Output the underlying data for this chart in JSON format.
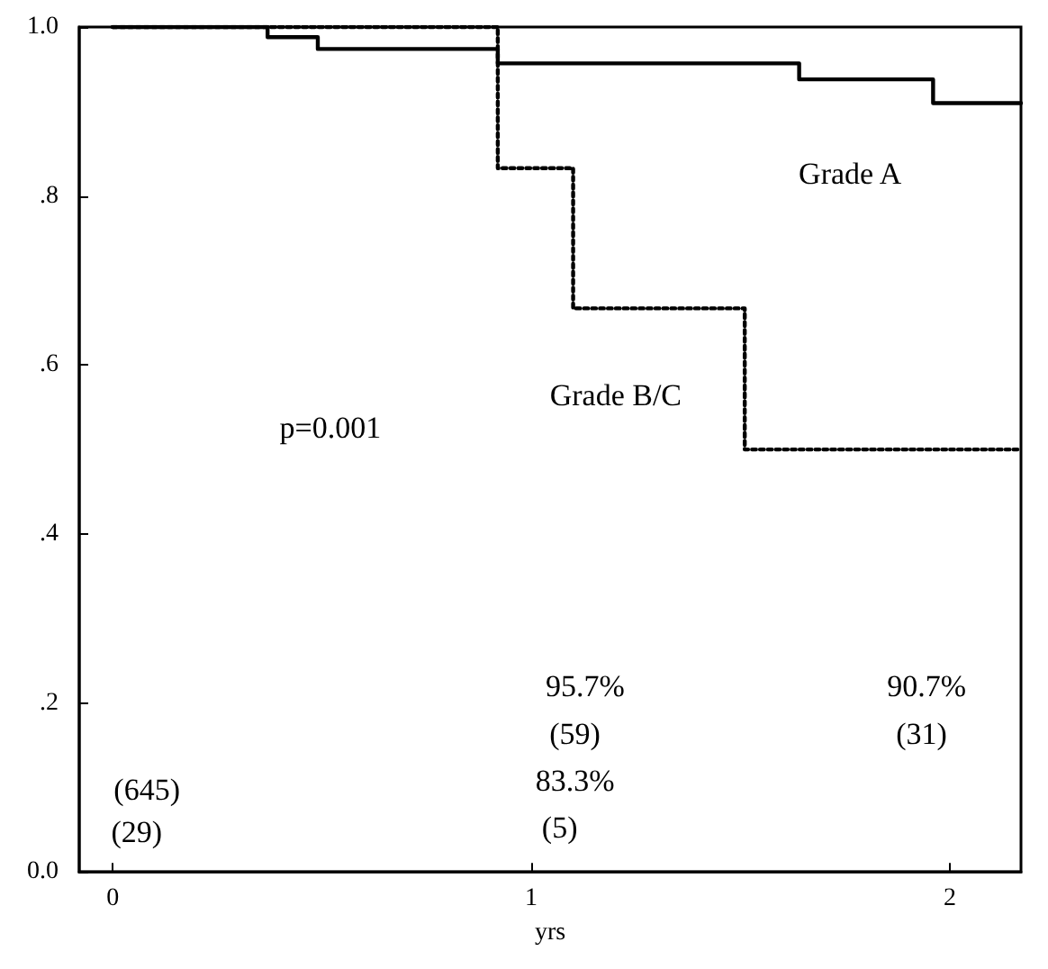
{
  "chart_data": {
    "type": "step",
    "xlabel": "yrs",
    "xlim": [
      -0.08,
      2.17
    ],
    "xticks": [
      0,
      1,
      2
    ],
    "ylim": [
      0,
      1
    ],
    "yticks": [
      {
        "value": 0,
        "label": "0.0"
      },
      {
        "value": 0.2,
        "label": ".2"
      },
      {
        "value": 0.4,
        "label": ".4"
      },
      {
        "value": 0.6,
        "label": ".6"
      },
      {
        "value": 0.8,
        "label": ".8"
      },
      {
        "value": 1,
        "label": "1.0"
      }
    ],
    "marker": "none",
    "series": [
      {
        "color": "#000000",
        "line_style": "solid",
        "x": [
          0,
          0.37,
          0.49,
          0.92,
          1.64,
          1.96,
          2.17
        ],
        "values": [
          1,
          0.988,
          0.974,
          0.957,
          0.938,
          0.91,
          0.91
        ]
      },
      {
        "color": "#000000",
        "line_style": "dotted",
        "x": [
          0,
          0.92,
          1.1,
          1.51,
          2.17
        ],
        "values": [
          1,
          0.833,
          0.667,
          0.5,
          0.5
        ]
      }
    ],
    "annotations": [
      "p=0.001",
      "Grade A",
      "Grade B/C",
      "95.7%",
      "(59)",
      "83.3%",
      "(5)",
      "90.7%",
      "(31)",
      "(645)",
      "(29)"
    ]
  }
}
